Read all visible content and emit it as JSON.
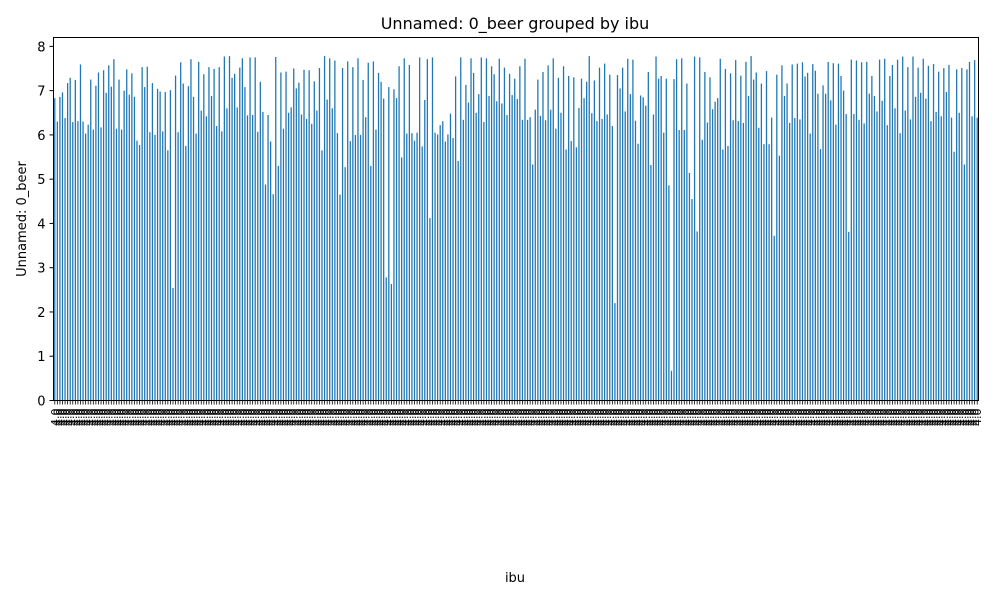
{
  "chart_data": {
    "type": "bar",
    "title": "Unnamed: 0_beer grouped by ibu",
    "xlabel": "ibu",
    "ylabel": "Unnamed: 0_beer",
    "ylim": [
      0,
      8.2
    ],
    "yticks": [
      "0",
      "1",
      "2",
      "3",
      "4",
      "5",
      "6",
      "7",
      "8"
    ],
    "xtick_label_text": "4.0",
    "grid": false,
    "legend": "none",
    "bar_color": "#1f77b4",
    "values": [
      6.83,
      6.3,
      6.86,
      6.96,
      6.38,
      7.17,
      7.29,
      6.29,
      7.24,
      6.31,
      7.59,
      6.3,
      6.03,
      6.23,
      7.25,
      6.12,
      7.11,
      7.41,
      6.17,
      7.46,
      6.95,
      7.57,
      7.09,
      7.71,
      6.14,
      7.25,
      6.12,
      7.0,
      7.48,
      6.91,
      7.39,
      6.86,
      5.87,
      5.77,
      7.53,
      7.08,
      7.54,
      6.06,
      7.17,
      6.0,
      7.04,
      6.98,
      6.08,
      6.97,
      5.65,
      7.01,
      2.54,
      7.34,
      6.06,
      7.64,
      7.16,
      5.75,
      7.1,
      7.71,
      6.86,
      6.03,
      7.65,
      6.55,
      7.37,
      6.42,
      7.53,
      6.88,
      7.49,
      6.2,
      7.53,
      6.08,
      7.77,
      6.6,
      7.78,
      7.29,
      7.38,
      6.62,
      7.52,
      7.73,
      7.08,
      6.44,
      7.75,
      6.45,
      7.75,
      6.07,
      7.2,
      6.52,
      4.88,
      6.45,
      5.85,
      4.66,
      7.76,
      5.3,
      7.41,
      6.14,
      7.43,
      6.5,
      6.62,
      7.5,
      7.05,
      7.18,
      6.46,
      7.47,
      6.36,
      7.46,
      6.25,
      7.21,
      6.55,
      7.51,
      5.65,
      7.78,
      6.8,
      7.73,
      6.6,
      7.68,
      6.04,
      4.65,
      7.51,
      5.27,
      7.66,
      5.86,
      7.53,
      6.0,
      7.73,
      6.0,
      7.24,
      6.4,
      7.63,
      5.3,
      7.66,
      6.12,
      7.4,
      7.2,
      6.82,
      2.78,
      7.08,
      2.63,
      7.03,
      6.83,
      7.55,
      5.49,
      7.73,
      6.03,
      7.58,
      6.04,
      5.87,
      6.05,
      7.75,
      5.74,
      6.79,
      7.71,
      4.12,
      7.75,
      6.05,
      6.01,
      6.22,
      6.31,
      5.85,
      6.01,
      6.48,
      5.93,
      7.32,
      5.41,
      7.75,
      6.34,
      7.13,
      6.73,
      7.73,
      7.4,
      6.5,
      6.92,
      7.75,
      6.29,
      7.73,
      6.88,
      7.55,
      7.37,
      6.76,
      7.72,
      6.71,
      7.52,
      6.45,
      7.38,
      6.9,
      7.27,
      6.81,
      7.55,
      6.34,
      7.72,
      6.34,
      6.4,
      5.33,
      6.57,
      7.25,
      6.43,
      7.42,
      6.33,
      7.57,
      6.57,
      7.73,
      6.14,
      7.29,
      6.5,
      7.55,
      5.67,
      7.33,
      5.86,
      7.3,
      5.72,
      6.61,
      7.27,
      6.83,
      7.2,
      7.78,
      6.49,
      7.23,
      6.31,
      7.52,
      6.36,
      7.61,
      6.46,
      7.36,
      6.2,
      2.2,
      7.35,
      7.05,
      7.52,
      6.53,
      7.72,
      6.92,
      7.7,
      6.32,
      5.8,
      6.89,
      6.85,
      6.66,
      7.42,
      5.32,
      6.46,
      7.77,
      7.27,
      7.33,
      6.05,
      7.27,
      4.86,
      0.67,
      7.26,
      7.71,
      6.11,
      7.73,
      6.11,
      7.16,
      5.14,
      4.55,
      7.77,
      3.82,
      7.75,
      5.89,
      7.42,
      6.28,
      7.3,
      6.58,
      6.75,
      6.83,
      7.72,
      5.67,
      7.49,
      5.75,
      7.39,
      6.33,
      7.69,
      6.31,
      7.34,
      6.27,
      7.65,
      6.88,
      7.78,
      7.25,
      7.41,
      6.16,
      7.16,
      5.79,
      7.44,
      5.79,
      6.39,
      3.72,
      7.36,
      5.53,
      7.57,
      6.88,
      7.16,
      6.27,
      7.59,
      6.38,
      7.61,
      6.35,
      7.64,
      7.32,
      7.4,
      6.03,
      7.6,
      7.45,
      6.93,
      5.68,
      7.12,
      6.93,
      7.65,
      6.78,
      7.62,
      6.23,
      7.61,
      7.33,
      7.0,
      6.47,
      3.81,
      7.7,
      6.47,
      7.68,
      6.34,
      7.64,
      6.26,
      7.65,
      6.93,
      7.33,
      6.88,
      6.53,
      7.7,
      6.77,
      7.72,
      6.22,
      7.33,
      7.58,
      6.6,
      7.7,
      6.04,
      7.77,
      6.55,
      7.53,
      6.35,
      7.77,
      6.86,
      7.52,
      6.95,
      7.72,
      6.82,
      7.56,
      6.31,
      7.6,
      6.52,
      7.43,
      6.42,
      7.51,
      6.97,
      7.58,
      6.39,
      5.62,
      7.48,
      6.5,
      7.51,
      5.33,
      7.48,
      7.65,
      6.42,
      7.69,
      6.39
    ]
  }
}
